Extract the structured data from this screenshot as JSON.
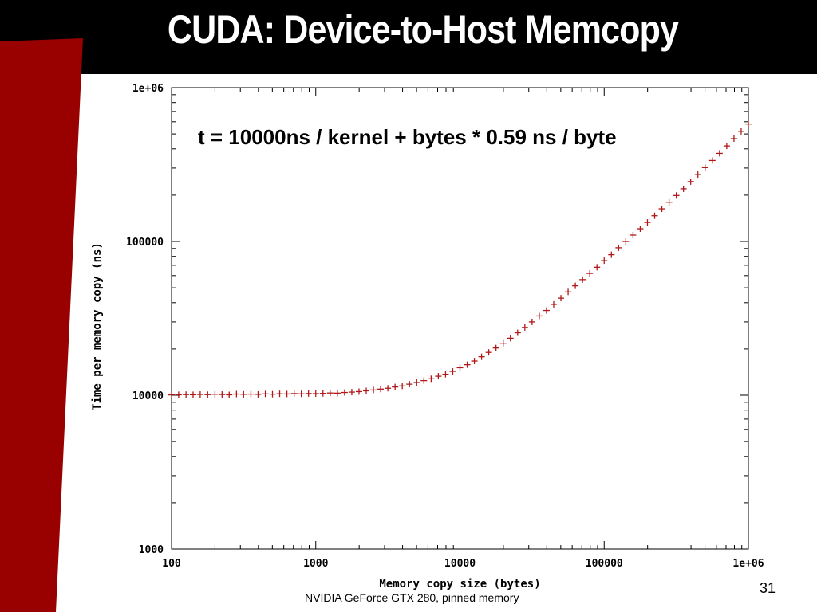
{
  "slide": {
    "title": "CUDA: Device-to-Host Memcopy",
    "number": "31",
    "caption": "NVIDIA GeForce GTX 280, pinned memory"
  },
  "colors": {
    "title_bar": "#000000",
    "accent": "#990000",
    "plot_series": "#b01818"
  },
  "chart_data": {
    "type": "scatter",
    "title": "",
    "annotation": "t = 10000ns / kernel + bytes * 0.59 ns / byte",
    "xlabel": "Memory copy size (bytes)",
    "ylabel": "Time per memory copy (ns)",
    "xscale": "log",
    "yscale": "log",
    "xlim": [
      100,
      1000000
    ],
    "ylim": [
      1000,
      1000000
    ],
    "x_ticks": [
      "100",
      "1000",
      "10000",
      "100000",
      "1e+06"
    ],
    "y_ticks": [
      "1000",
      "10000",
      "100000",
      "1e+06"
    ],
    "grid": false,
    "legend": "none",
    "marker": "+",
    "series": [
      {
        "x": [
          100,
          112,
          126,
          141,
          158,
          178,
          200,
          224,
          251,
          282,
          316,
          355,
          398,
          447,
          501,
          562,
          631,
          708,
          794,
          891,
          1000,
          1122,
          1259,
          1413,
          1585,
          1778,
          1995,
          2239,
          2512,
          2818,
          3162,
          3548,
          3981,
          4467,
          5012,
          5623,
          6310,
          7079,
          7943,
          8913,
          10000,
          11220,
          12589,
          14125,
          15849,
          17783,
          19953,
          22387,
          25119,
          28184,
          31623,
          35481,
          39811,
          44668,
          50119,
          56234,
          63096,
          70795,
          79433,
          89125,
          100000,
          112202,
          125893,
          141254,
          158489,
          177828,
          199526,
          223872,
          251189,
          281838,
          316228,
          354813,
          398107,
          446684,
          501187,
          562341,
          630957,
          707946,
          794328,
          891251,
          1000000
        ],
        "y": [
          10050,
          10080,
          10100,
          10070,
          10120,
          10090,
          10150,
          10110,
          10060,
          10180,
          10140,
          10170,
          10130,
          10200,
          10160,
          10220,
          10190,
          10250,
          10210,
          10260,
          10240,
          10280,
          10340,
          10320,
          10420,
          10480,
          10560,
          10680,
          10820,
          10960,
          11100,
          11320,
          11500,
          11800,
          12100,
          12450,
          12800,
          13300,
          13700,
          14300,
          15100,
          15800,
          16700,
          17800,
          19000,
          20300,
          21800,
          23500,
          25500,
          27600,
          30000,
          32800,
          35600,
          39000,
          42800,
          47000,
          51500,
          56500,
          62000,
          68000,
          75000,
          82000,
          91000,
          100000,
          110000,
          121000,
          133000,
          147000,
          163000,
          180000,
          199000,
          220000,
          245000,
          272000,
          302000,
          336000,
          374000,
          418000,
          466000,
          520000,
          580000
        ]
      }
    ]
  }
}
